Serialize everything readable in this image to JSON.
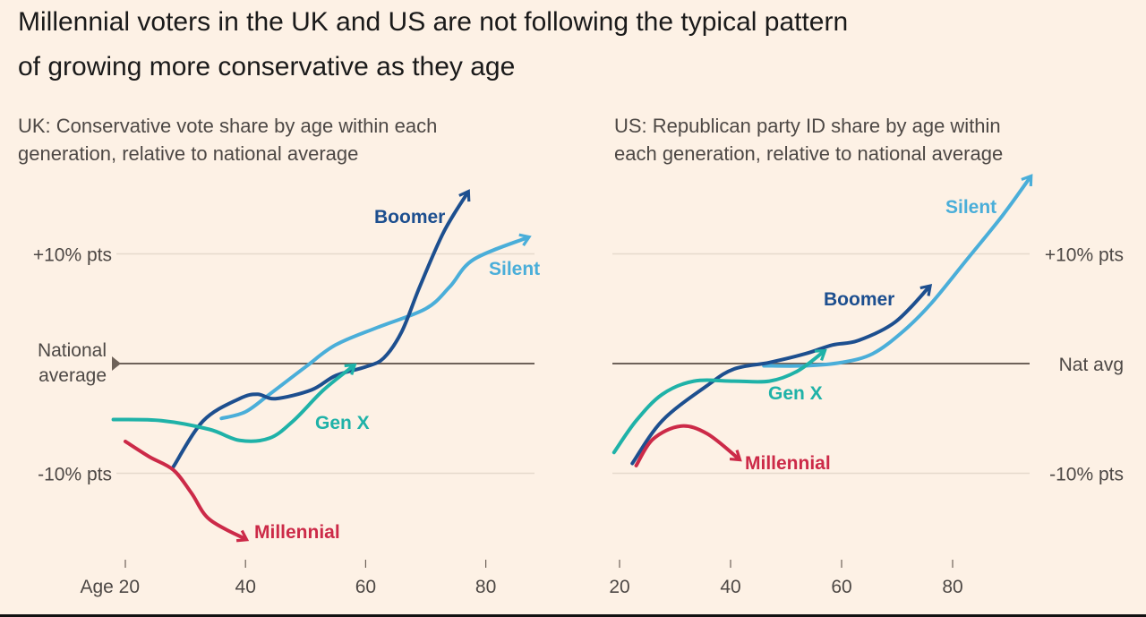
{
  "title_line1": "Millennial voters in the UK and US are not following the typical pattern",
  "title_line2": "of growing more conservative as they age",
  "colors": {
    "background": "#fdf1e5",
    "Silent": "#4aaed9",
    "Boomer": "#1d4f8f",
    "Gen X": "#1fb2a8",
    "Millennial": "#cc2a48",
    "gridline": "#e6d9cc",
    "baseline": "#6e6259"
  },
  "chart_data": [
    {
      "type": "line",
      "subtitle_line1": "UK: Conservative vote share by age within each",
      "subtitle_line2": "generation, relative to national average",
      "xlim": [
        17,
        90
      ],
      "ylim": [
        -20,
        20
      ],
      "x_ticks": [
        20,
        40,
        60,
        80
      ],
      "x_tick_labels": [
        "Age 20",
        "40",
        "60",
        "80"
      ],
      "y_ticks": [
        10,
        0,
        -10
      ],
      "y_tick_labels": [
        "+10% pts",
        "National average",
        "-10% pts"
      ],
      "baseline_label": "National average",
      "series": [
        {
          "name": "Silent",
          "x": [
            36,
            40,
            44,
            50,
            55,
            62,
            70,
            74,
            78,
            87
          ],
          "y": [
            -5.0,
            -4.4,
            -2.8,
            -0.3,
            1.7,
            3.3,
            5.0,
            7.0,
            9.5,
            11.5
          ]
        },
        {
          "name": "Boomer",
          "x": [
            28,
            33,
            39,
            42,
            45,
            51,
            55,
            60,
            63,
            66,
            69,
            73,
            77
          ],
          "y": [
            -9.4,
            -5.2,
            -3.2,
            -2.8,
            -3.2,
            -2.4,
            -1.1,
            -0.3,
            0.5,
            2.9,
            7.0,
            12.0,
            15.6
          ]
        },
        {
          "name": "Gen X",
          "x": [
            18,
            26,
            34,
            39,
            44,
            48,
            53,
            58
          ],
          "y": [
            -5.1,
            -5.2,
            -6.0,
            -7.0,
            -6.8,
            -5.2,
            -2.4,
            -0.2
          ]
        },
        {
          "name": "Millennial",
          "x": [
            20,
            24,
            28,
            31,
            34,
            40
          ],
          "y": [
            -7.1,
            -8.5,
            -9.7,
            -11.8,
            -14.2,
            -16.0
          ]
        }
      ]
    },
    {
      "type": "line",
      "subtitle_line1": "US: Republican party ID share by age within",
      "subtitle_line2": "each generation, relative to national average",
      "xlim": [
        17,
        97
      ],
      "ylim": [
        -20,
        20
      ],
      "x_ticks": [
        20,
        40,
        60,
        80
      ],
      "x_tick_labels": [
        "20",
        "40",
        "60",
        "80"
      ],
      "y_ticks": [
        10,
        0,
        -10
      ],
      "y_tick_labels": [
        "+10% pts",
        "Nat avg",
        "-10% pts"
      ],
      "baseline_label": "Nat avg",
      "series": [
        {
          "name": "Silent",
          "x": [
            46,
            53.5,
            60,
            65.6,
            71,
            76,
            82.6,
            89,
            94
          ],
          "y": [
            -0.2,
            -0.2,
            0.1,
            0.9,
            2.9,
            5.4,
            9.5,
            13.5,
            17.0
          ]
        },
        {
          "name": "Boomer",
          "x": [
            22.3,
            27.7,
            35.8,
            40.6,
            47,
            53.5,
            58.4,
            63,
            69.7,
            75.8
          ],
          "y": [
            -9.1,
            -5.2,
            -2.0,
            -0.5,
            0.1,
            0.9,
            1.7,
            2.1,
            3.8,
            7.0
          ]
        },
        {
          "name": "Gen X",
          "x": [
            19,
            23,
            27.7,
            33.4,
            40.6,
            47,
            52,
            56.8
          ],
          "y": [
            -8.1,
            -5.2,
            -2.8,
            -1.6,
            -1.6,
            -1.6,
            -0.7,
            1.1
          ]
        },
        {
          "name": "Millennial",
          "x": [
            23,
            26,
            31,
            35.8,
            41.5
          ],
          "y": [
            -9.3,
            -6.9,
            -5.7,
            -6.4,
            -8.7
          ]
        }
      ]
    }
  ]
}
